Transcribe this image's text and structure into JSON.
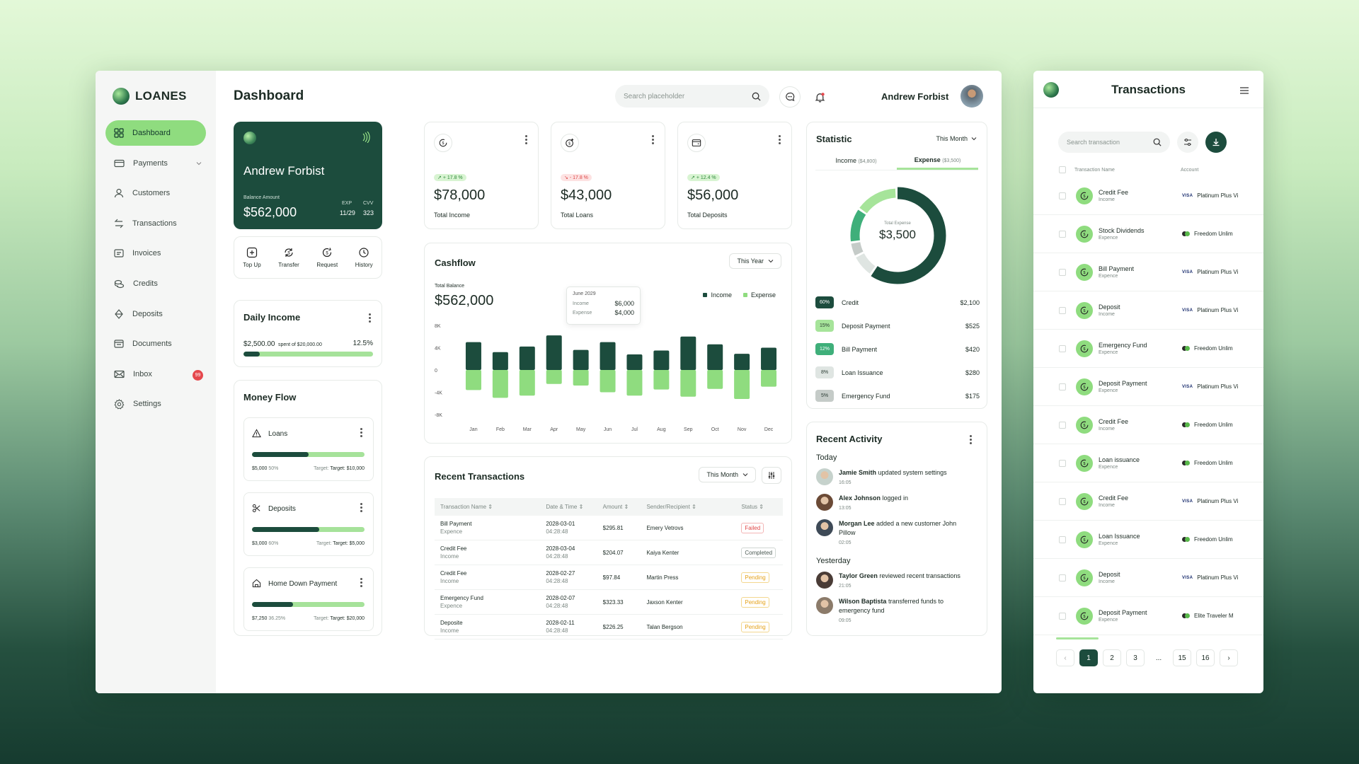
{
  "brand": {
    "name": "LOANES"
  },
  "sidebar": {
    "items": [
      {
        "label": "Dashboard",
        "icon": "grid-icon",
        "active": true
      },
      {
        "label": "Payments",
        "icon": "card-icon",
        "has_chevron": true
      },
      {
        "label": "Customers",
        "icon": "user-icon"
      },
      {
        "label": "Transactions",
        "icon": "arrows-icon"
      },
      {
        "label": "Invoices",
        "icon": "invoice-icon"
      },
      {
        "label": "Credits",
        "icon": "coins-icon"
      },
      {
        "label": "Deposits",
        "icon": "diamond-icon"
      },
      {
        "label": "Documents",
        "icon": "folder-icon"
      },
      {
        "label": "Inbox",
        "icon": "mail-icon",
        "badge": "99"
      },
      {
        "label": "Settings",
        "icon": "gear-icon"
      }
    ]
  },
  "header": {
    "title": "Dashboard",
    "search_placeholder": "Search placeholder",
    "user_name": "Andrew Forbist"
  },
  "balance_card": {
    "name": "Andrew Forbist",
    "balance_label": "Balance Amount",
    "balance": "$562,000",
    "exp_label": "EXP",
    "exp": "11/29",
    "cvv_label": "CVV",
    "cvv": "323"
  },
  "quick_actions": [
    {
      "label": "Top Up",
      "icon": "plus-square-icon"
    },
    {
      "label": "Transfer",
      "icon": "transfer-icon"
    },
    {
      "label": "Request",
      "icon": "request-icon"
    },
    {
      "label": "History",
      "icon": "clock-icon"
    }
  ],
  "stats": [
    {
      "trend": "+ 17.8 %",
      "trend_dir": "up",
      "value": "$78,000",
      "label": "Total Income",
      "icon": "coin-cycle-icon"
    },
    {
      "trend": "- 17.8 %",
      "trend_dir": "down",
      "value": "$43,000",
      "label": "Total Loans",
      "icon": "coin-add-icon"
    },
    {
      "trend": "+ 12.4 %",
      "trend_dir": "up",
      "value": "$56,000",
      "label": "Total Deposits",
      "icon": "wallet-icon"
    }
  ],
  "daily_income": {
    "title": "Daily Income",
    "spent": "$2,500.00",
    "spent_text": "spent of $20,000.00",
    "percent": "12.5%",
    "progress": 0.125
  },
  "money_flow": {
    "title": "Money Flow",
    "items": [
      {
        "name": "Loans",
        "icon": "warning-icon",
        "amount": "$5,000",
        "pct": "50%",
        "target_label": "Target:",
        "target": "Target: $10,000",
        "progress": 0.5
      },
      {
        "name": "Deposits",
        "icon": "scissors-icon",
        "amount": "$3,000",
        "pct": "60%",
        "target_label": "Target:",
        "target": "Target: $5,000",
        "progress": 0.6
      },
      {
        "name": "Home Down Payment",
        "icon": "home-icon",
        "amount": "$7,250",
        "pct": "36.25%",
        "target_label": "Target:",
        "target": "Target: $20,000",
        "progress": 0.3625
      }
    ]
  },
  "cashflow": {
    "title": "Cashflow",
    "filter": "This Year",
    "total_label": "Total Balance",
    "total": "$562,000",
    "tooltip": {
      "month": "June 2029",
      "income_label": "Income",
      "income": "$6,000",
      "expense_label": "Expense",
      "expense": "$4,000"
    },
    "legend_income": "Income",
    "legend_expense": "Expense",
    "colors": {
      "income": "#1c4c3d",
      "expense": "#8fdc7f"
    }
  },
  "chart_data": {
    "type": "bar",
    "title": "Cashflow",
    "categories": [
      "Jan",
      "Feb",
      "Mar",
      "Apr",
      "May",
      "Jun",
      "Jul",
      "Aug",
      "Sep",
      "Oct",
      "Nov",
      "Dec"
    ],
    "yticks": [
      "8K",
      "4K",
      "0",
      "-4K",
      "-8K"
    ],
    "ylim": [
      -8000,
      8000
    ],
    "series": [
      {
        "name": "Income",
        "values": [
          5000,
          3200,
          4200,
          6200,
          3600,
          5000,
          2800,
          3500,
          6000,
          4600,
          2900,
          4000
        ]
      },
      {
        "name": "Expense",
        "values": [
          -3600,
          -5000,
          -4600,
          -2500,
          -2800,
          -4000,
          -4600,
          -3500,
          -4800,
          -3400,
          -5200,
          -3000
        ]
      }
    ]
  },
  "recent_transactions": {
    "title": "Recent Transactions",
    "filter": "This Month",
    "columns": [
      "Transaction Name",
      "Date & Time",
      "Amount",
      "Sender/Recipient",
      "Status"
    ],
    "rows": [
      {
        "name": "Bill Payment",
        "type": "Expence",
        "date": "2028-03-01",
        "time": "04:28:48",
        "amount": "$295.81",
        "party": "Emery Vetrovs",
        "status": "Failed",
        "status_kind": "failed"
      },
      {
        "name": "Credit Fee",
        "type": "Income",
        "date": "2028-03-04",
        "time": "04:28:48",
        "amount": "$204.07",
        "party": "Kaiya Kenter",
        "status": "Completed",
        "status_kind": "completed"
      },
      {
        "name": "Credit Fee",
        "type": "Income",
        "date": "2028-02-27",
        "time": "04:28:48",
        "amount": "$97.84",
        "party": "Martin Press",
        "status": "Pending",
        "status_kind": "pending"
      },
      {
        "name": "Emergency Fund",
        "type": "Expence",
        "date": "2028-02-07",
        "time": "04:28:48",
        "amount": "$323.33",
        "party": "Jaxson Kenter",
        "status": "Pending",
        "status_kind": "pending"
      },
      {
        "name": "Deposite",
        "type": "Income",
        "date": "2028-02-11",
        "time": "04:28:48",
        "amount": "$226.25",
        "party": "Talan Bergson",
        "status": "Pending",
        "status_kind": "pending"
      }
    ]
  },
  "statistic": {
    "title": "Statistic",
    "filter": "This Month",
    "tab_income": "Income",
    "tab_income_amount": "($4,800)",
    "tab_expense": "Expense",
    "tab_expense_amount": "($3,500)",
    "center_label": "Total Expense",
    "center_value": "$3,500",
    "items": [
      {
        "pct": "60%",
        "label": "Credit",
        "amount": "$2,100",
        "color": "#1c4c3d",
        "fraction": 0.6
      },
      {
        "pct": "15%",
        "label": "Deposit Payment",
        "amount": "$525",
        "color": "#a6e49a",
        "fraction": 0.15
      },
      {
        "pct": "12%",
        "label": "Bill Payment",
        "amount": "$420",
        "color": "#3faf7a",
        "fraction": 0.12
      },
      {
        "pct": "8%",
        "label": "Loan Issuance",
        "amount": "$280",
        "color": "#dfe5e2",
        "fraction": 0.08
      },
      {
        "pct": "5%",
        "label": "Emergency Fund",
        "amount": "$175",
        "color": "#c5cbc8",
        "fraction": 0.05
      }
    ]
  },
  "recent_activity": {
    "title": "Recent Activity",
    "groups": [
      {
        "label": "Today",
        "items": [
          {
            "who": "Jamie Smith",
            "text": "updated system settings",
            "time": "16:05",
            "avatar": "#c6d2cc"
          },
          {
            "who": "Alex Johnson",
            "text": "logged in",
            "time": "13:05",
            "avatar": "#6b4a36"
          },
          {
            "who": "Morgan Lee",
            "text": "added a new customer John Pillow",
            "time": "02:05",
            "avatar": "#3e4a57"
          }
        ]
      },
      {
        "label": "Yesterday",
        "items": [
          {
            "who": "Taylor Green",
            "text": "reviewed recent transactions",
            "time": "21:05",
            "avatar": "#4a3c36"
          },
          {
            "who": "Wilson Baptista",
            "text": "transferred funds to emergency fund",
            "time": "09:05",
            "avatar": "#8c7b6a"
          }
        ]
      }
    ]
  },
  "transactions_panel": {
    "title": "Transactions",
    "search_placeholder": "Search transaction",
    "col_name": "Transaction Name",
    "col_account": "Account",
    "rows": [
      {
        "name": "Credit Fee",
        "type": "Income",
        "card": "visa",
        "account": "Platinum Plus Vi"
      },
      {
        "name": "Stock Dividends",
        "type": "Expence",
        "card": "mc",
        "account": "Freedom Unlim"
      },
      {
        "name": "Bill Payment",
        "type": "Expence",
        "card": "visa",
        "account": "Platinum Plus Vi"
      },
      {
        "name": "Deposit",
        "type": "Income",
        "card": "visa",
        "account": "Platinum Plus Vi"
      },
      {
        "name": "Emergency Fund",
        "type": "Expence",
        "card": "mc",
        "account": "Freedom Unlim"
      },
      {
        "name": "Deposit Payment",
        "type": "Expence",
        "card": "visa",
        "account": "Platinum Plus Vi"
      },
      {
        "name": "Credit Fee",
        "type": "Income",
        "card": "mc",
        "account": "Freedom Unlim"
      },
      {
        "name": "Loan issuance",
        "type": "Expence",
        "card": "mc",
        "account": "Freedom Unlim"
      },
      {
        "name": "Credit Fee",
        "type": "Income",
        "card": "visa",
        "account": "Platinum Plus Vi"
      },
      {
        "name": "Loan Issuance",
        "type": "Expence",
        "card": "mc",
        "account": "Freedom Unlim"
      },
      {
        "name": "Deposit",
        "type": "Income",
        "card": "visa",
        "account": "Platinum Plus Vi"
      },
      {
        "name": "Deposit Payment",
        "type": "Expence",
        "card": "mc",
        "account": "Elite Traveler M"
      }
    ],
    "pages": [
      "1",
      "2",
      "3",
      "...",
      "15",
      "16"
    ],
    "visa_label": "VISA"
  }
}
